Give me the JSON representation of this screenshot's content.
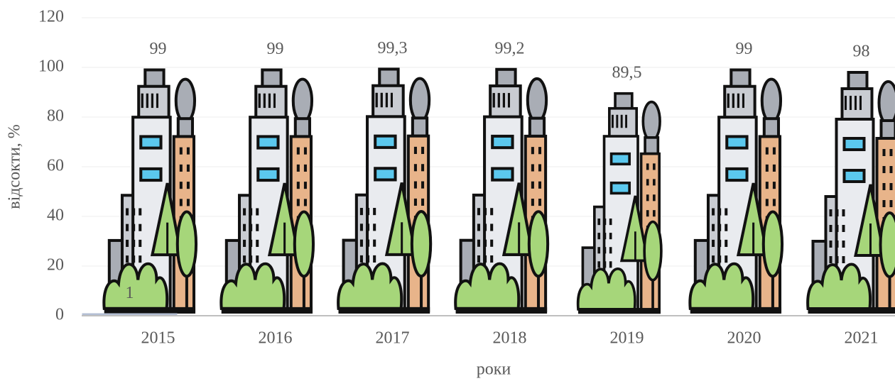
{
  "chart_data": {
    "type": "pictograph",
    "x_label": "роки",
    "y_label": "відсокти, %",
    "categories": [
      "2015",
      "2016",
      "2017",
      "2018",
      "2019",
      "2020",
      "2021"
    ],
    "series": [
      {
        "values": [
          99,
          99,
          99.3,
          99.2,
          89.5,
          99,
          98
        ],
        "value_labels": [
          "99",
          "99",
          "99,3",
          "99,2",
          "89,5",
          "99",
          "98"
        ]
      },
      {
        "color": "#b4bfd4",
        "values": [
          1,
          null,
          null,
          null,
          null,
          null,
          null
        ]
      }
    ],
    "ylim": [
      0,
      120
    ],
    "yticks": [
      0,
      20,
      40,
      60,
      80,
      100,
      120
    ],
    "grid": true
  }
}
